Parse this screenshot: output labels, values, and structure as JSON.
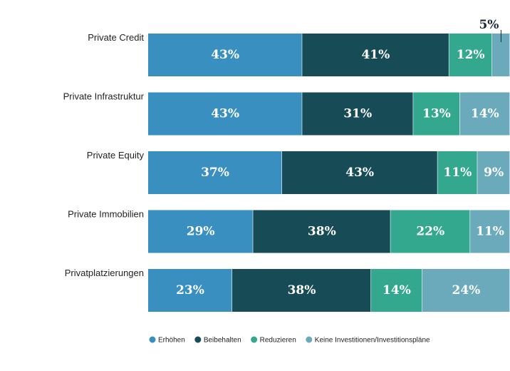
{
  "chart_data": {
    "type": "bar",
    "orientation": "horizontal",
    "stacked": true,
    "categories": [
      "Private Credit",
      "Private Infrastruktur",
      "Private Equity",
      "Private Immobilien",
      "Privatplatzierungen"
    ],
    "series": [
      {
        "name": "Erhöhen",
        "color": "#3a8fc1",
        "values": [
          43,
          43,
          37,
          29,
          23
        ]
      },
      {
        "name": "Beibehalten",
        "color": "#174c57",
        "values": [
          41,
          31,
          43,
          38,
          38
        ]
      },
      {
        "name": "Reduzieren",
        "color": "#34a88e",
        "values": [
          12,
          13,
          11,
          22,
          14
        ]
      },
      {
        "name": "Keine Investitionen/Investitionspläne",
        "color": "#6aaabb",
        "values": [
          5,
          14,
          9,
          11,
          24
        ]
      }
    ],
    "value_suffix": "%",
    "legend_position": "bottom",
    "grid": false
  }
}
